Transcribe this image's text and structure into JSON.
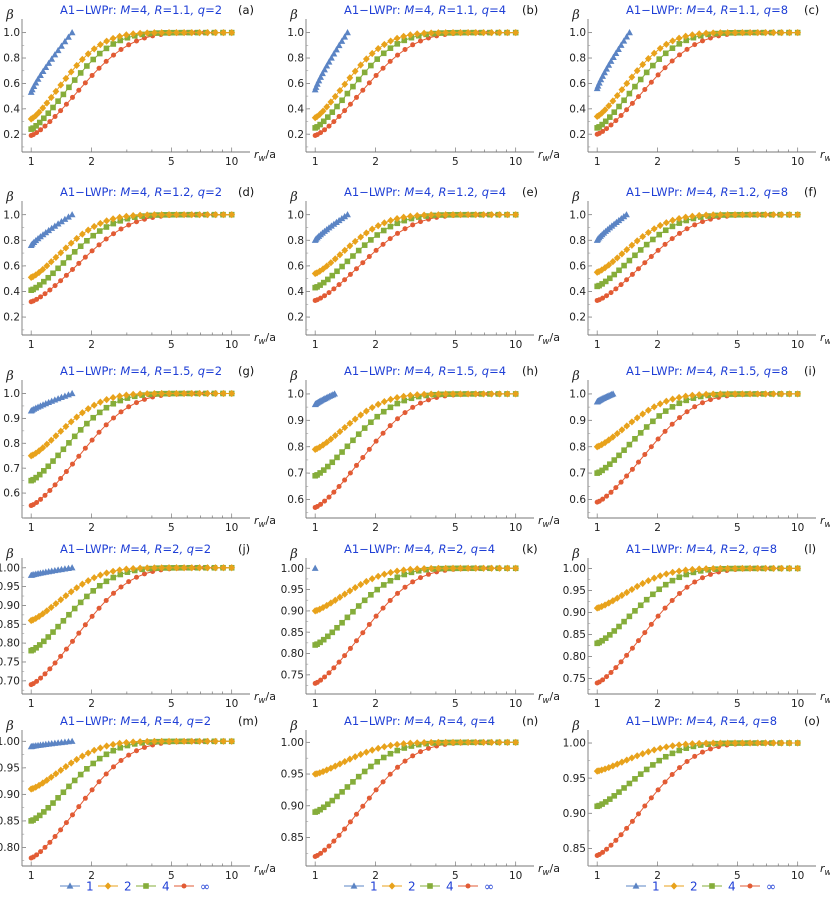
{
  "figure": {
    "x_axis_label_main": "r",
    "x_axis_label_sub": "w",
    "x_axis_label_tail": "/a",
    "y_axis_label": "β",
    "title_prefix": "A1−LWPr: ",
    "colors": {
      "1": "#5b84c4",
      "2": "#e8a21b",
      "4": "#85ad3a",
      "inf": "#e25b34",
      "title": "#1f3fd6"
    }
  },
  "legends": [
    {
      "items": [
        {
          "label": "1",
          "key": "1"
        },
        {
          "label": "2",
          "key": "2"
        },
        {
          "label": "4",
          "key": "4"
        },
        {
          "label": "∞",
          "key": "inf"
        }
      ]
    },
    {
      "items": [
        {
          "label": "1",
          "key": "1"
        },
        {
          "label": "2",
          "key": "2"
        },
        {
          "label": "4",
          "key": "4"
        },
        {
          "label": "∞",
          "key": "inf"
        }
      ]
    },
    {
      "items": [
        {
          "label": "1",
          "key": "1"
        },
        {
          "label": "2",
          "key": "2"
        },
        {
          "label": "4",
          "key": "4"
        },
        {
          "label": "∞",
          "key": "inf"
        }
      ]
    }
  ],
  "chart_data": [
    {
      "panel": "(a)",
      "title": "M=4, R=1.1, q=2",
      "type": "line",
      "xscale": "log",
      "xlim": [
        0.9,
        11
      ],
      "ylim": [
        0.06,
        1.06
      ],
      "yticks": [
        "0.2",
        "0.4",
        "0.6",
        "0.8",
        "1.0"
      ],
      "xticks": [
        "1",
        "2",
        "5",
        "10"
      ],
      "series": [
        {
          "name": "1",
          "start": [
            1.0,
            0.53
          ],
          "end": [
            1.6,
            1.0
          ]
        },
        {
          "name": "2",
          "start": [
            1.0,
            0.32
          ],
          "end": [
            10,
            1.0
          ]
        },
        {
          "name": "4",
          "start": [
            1.0,
            0.24
          ],
          "end": [
            10,
            1.0
          ]
        },
        {
          "name": "∞",
          "start": [
            1.0,
            0.19
          ],
          "end": [
            10,
            1.0
          ]
        }
      ]
    },
    {
      "panel": "(b)",
      "title": "M=4, R=1.1, q=4",
      "type": "line",
      "xscale": "log",
      "xlim": [
        0.9,
        11
      ],
      "ylim": [
        0.06,
        1.06
      ],
      "yticks": [
        "0.2",
        "0.4",
        "0.6",
        "0.8",
        "1.0"
      ],
      "xticks": [
        "1",
        "2",
        "5",
        "10"
      ],
      "series": [
        {
          "name": "1",
          "start": [
            1.0,
            0.55
          ],
          "end": [
            1.45,
            1.0
          ]
        },
        {
          "name": "2",
          "start": [
            1.0,
            0.33
          ],
          "end": [
            10,
            1.0
          ]
        },
        {
          "name": "4",
          "start": [
            1.0,
            0.25
          ],
          "end": [
            10,
            1.0
          ]
        },
        {
          "name": "∞",
          "start": [
            1.0,
            0.19
          ],
          "end": [
            10,
            1.0
          ]
        }
      ]
    },
    {
      "panel": "(c)",
      "title": "M=4, R=1.1, q=8",
      "type": "line",
      "xscale": "log",
      "xlim": [
        0.9,
        11
      ],
      "ylim": [
        0.06,
        1.06
      ],
      "yticks": [
        "0.2",
        "0.4",
        "0.6",
        "0.8",
        "1.0"
      ],
      "xticks": [
        "1",
        "2",
        "5",
        "10"
      ],
      "series": [
        {
          "name": "1",
          "start": [
            1.0,
            0.56
          ],
          "end": [
            1.45,
            1.0
          ]
        },
        {
          "name": "2",
          "start": [
            1.0,
            0.34
          ],
          "end": [
            10,
            1.0
          ]
        },
        {
          "name": "4",
          "start": [
            1.0,
            0.25
          ],
          "end": [
            10,
            1.0
          ]
        },
        {
          "name": "∞",
          "start": [
            1.0,
            0.2
          ],
          "end": [
            10,
            1.0
          ]
        }
      ]
    },
    {
      "panel": "(d)",
      "title": "M=4, R=1.2, q=2",
      "type": "line",
      "xscale": "log",
      "xlim": [
        0.9,
        11
      ],
      "ylim": [
        0.06,
        1.06
      ],
      "yticks": [
        "0.2",
        "0.4",
        "0.6",
        "0.8",
        "1.0"
      ],
      "xticks": [
        "1",
        "2",
        "5",
        "10"
      ],
      "series": [
        {
          "name": "1",
          "start": [
            1.0,
            0.76
          ],
          "end": [
            1.6,
            1.0
          ]
        },
        {
          "name": "2",
          "start": [
            1.0,
            0.51
          ],
          "end": [
            10,
            1.0
          ]
        },
        {
          "name": "4",
          "start": [
            1.0,
            0.41
          ],
          "end": [
            10,
            1.0
          ]
        },
        {
          "name": "∞",
          "start": [
            1.0,
            0.32
          ],
          "end": [
            10,
            1.0
          ]
        }
      ]
    },
    {
      "panel": "(e)",
      "title": "M=4, R=1.2, q=4",
      "type": "line",
      "xscale": "log",
      "xlim": [
        0.9,
        11
      ],
      "ylim": [
        0.06,
        1.06
      ],
      "yticks": [
        "0.2",
        "0.4",
        "0.6",
        "0.8",
        "1.0"
      ],
      "xticks": [
        "1",
        "2",
        "5",
        "10"
      ],
      "series": [
        {
          "name": "1",
          "start": [
            1.0,
            0.8
          ],
          "end": [
            1.45,
            1.0
          ]
        },
        {
          "name": "2",
          "start": [
            1.0,
            0.54
          ],
          "end": [
            10,
            1.0
          ]
        },
        {
          "name": "4",
          "start": [
            1.0,
            0.43
          ],
          "end": [
            10,
            1.0
          ]
        },
        {
          "name": "∞",
          "start": [
            1.0,
            0.33
          ],
          "end": [
            10,
            1.0
          ]
        }
      ]
    },
    {
      "panel": "(f)",
      "title": "M=4, R=1.2, q=8",
      "type": "line",
      "xscale": "log",
      "xlim": [
        0.9,
        11
      ],
      "ylim": [
        0.06,
        1.06
      ],
      "yticks": [
        "0.2",
        "0.4",
        "0.6",
        "0.8",
        "1.0"
      ],
      "xticks": [
        "1",
        "2",
        "5",
        "10"
      ],
      "series": [
        {
          "name": "1",
          "start": [
            1.0,
            0.8
          ],
          "end": [
            1.4,
            1.0
          ]
        },
        {
          "name": "2",
          "start": [
            1.0,
            0.55
          ],
          "end": [
            10,
            1.0
          ]
        },
        {
          "name": "4",
          "start": [
            1.0,
            0.44
          ],
          "end": [
            10,
            1.0
          ]
        },
        {
          "name": "∞",
          "start": [
            1.0,
            0.33
          ],
          "end": [
            10,
            1.0
          ]
        }
      ]
    },
    {
      "panel": "(g)",
      "title": "M=4, R=1.5, q=2",
      "type": "line",
      "xscale": "log",
      "xlim": [
        0.9,
        11
      ],
      "ylim": [
        0.5,
        1.03
      ],
      "yticks": [
        "0.6",
        "0.7",
        "0.8",
        "0.9",
        "1.0"
      ],
      "xticks": [
        "1",
        "2",
        "5",
        "10"
      ],
      "series": [
        {
          "name": "1",
          "start": [
            1.0,
            0.93
          ],
          "end": [
            1.6,
            1.0
          ]
        },
        {
          "name": "2",
          "start": [
            1.0,
            0.75
          ],
          "end": [
            10,
            1.0
          ]
        },
        {
          "name": "4",
          "start": [
            1.0,
            0.65
          ],
          "end": [
            10,
            1.0
          ]
        },
        {
          "name": "∞",
          "start": [
            1.0,
            0.55
          ],
          "end": [
            10,
            1.0
          ]
        }
      ]
    },
    {
      "panel": "(h)",
      "title": "M=4, R=1.5, q=4",
      "type": "line",
      "xscale": "log",
      "xlim": [
        0.9,
        11
      ],
      "ylim": [
        0.53,
        1.03
      ],
      "yticks": [
        "0.6",
        "0.7",
        "0.8",
        "0.9",
        "1.0"
      ],
      "xticks": [
        "1",
        "2",
        "5",
        "10"
      ],
      "series": [
        {
          "name": "1",
          "start": [
            1.0,
            0.96
          ],
          "end": [
            1.25,
            1.0
          ]
        },
        {
          "name": "2",
          "start": [
            1.0,
            0.79
          ],
          "end": [
            10,
            1.0
          ]
        },
        {
          "name": "4",
          "start": [
            1.0,
            0.69
          ],
          "end": [
            10,
            1.0
          ]
        },
        {
          "name": "∞",
          "start": [
            1.0,
            0.57
          ],
          "end": [
            10,
            1.0
          ]
        }
      ]
    },
    {
      "panel": "(i)",
      "title": "M=4, R=1.5, q=8",
      "type": "line",
      "xscale": "log",
      "xlim": [
        0.9,
        11
      ],
      "ylim": [
        0.53,
        1.03
      ],
      "yticks": [
        "0.6",
        "0.7",
        "0.8",
        "0.9",
        "1.0"
      ],
      "xticks": [
        "1",
        "2",
        "5",
        "10"
      ],
      "series": [
        {
          "name": "1",
          "start": [
            1.0,
            0.97
          ],
          "end": [
            1.2,
            1.0
          ]
        },
        {
          "name": "2",
          "start": [
            1.0,
            0.8
          ],
          "end": [
            10,
            1.0
          ]
        },
        {
          "name": "4",
          "start": [
            1.0,
            0.7
          ],
          "end": [
            10,
            1.0
          ]
        },
        {
          "name": "∞",
          "start": [
            1.0,
            0.59
          ],
          "end": [
            10,
            1.0
          ]
        }
      ]
    },
    {
      "panel": "(j)",
      "title": "M=4, R=2, q=2",
      "type": "line",
      "xscale": "log",
      "xlim": [
        0.9,
        11
      ],
      "ylim": [
        0.665,
        1.01
      ],
      "yticks": [
        "0.70",
        "0.75",
        "0.80",
        "0.85",
        "0.90",
        "0.95",
        "1.00"
      ],
      "xticks": [
        "1",
        "2",
        "5",
        "10"
      ],
      "series": [
        {
          "name": "1",
          "start": [
            1.0,
            0.98
          ],
          "end": [
            1.6,
            1.0
          ]
        },
        {
          "name": "2",
          "start": [
            1.0,
            0.86
          ],
          "end": [
            10,
            1.0
          ]
        },
        {
          "name": "4",
          "start": [
            1.0,
            0.78
          ],
          "end": [
            10,
            1.0
          ]
        },
        {
          "name": "∞",
          "start": [
            1.0,
            0.69
          ],
          "end": [
            10,
            1.0
          ]
        }
      ]
    },
    {
      "panel": "(k)",
      "title": "M=4, R=2, q=4",
      "type": "line",
      "xscale": "log",
      "xlim": [
        0.9,
        11
      ],
      "ylim": [
        0.705,
        1.01
      ],
      "yticks": [
        "0.75",
        "0.80",
        "0.85",
        "0.90",
        "0.95",
        "1.00"
      ],
      "xticks": [
        "1",
        "2",
        "5",
        "10"
      ],
      "series": [
        {
          "name": "1",
          "start": [
            1.0,
            1.0
          ],
          "end": [
            1.0,
            1.0
          ]
        },
        {
          "name": "2",
          "start": [
            1.0,
            0.9
          ],
          "end": [
            10,
            1.0
          ]
        },
        {
          "name": "4",
          "start": [
            1.0,
            0.82
          ],
          "end": [
            10,
            1.0
          ]
        },
        {
          "name": "∞",
          "start": [
            1.0,
            0.73
          ],
          "end": [
            10,
            1.0
          ]
        }
      ]
    },
    {
      "panel": "(l)",
      "title": "M=4, R=2, q=8",
      "type": "line",
      "xscale": "log",
      "xlim": [
        0.9,
        11
      ],
      "ylim": [
        0.715,
        1.01
      ],
      "yticks": [
        "0.75",
        "0.80",
        "0.85",
        "0.90",
        "0.95",
        "1.00"
      ],
      "xticks": [
        "1",
        "2",
        "5",
        "10"
      ],
      "series": [
        {
          "name": "2",
          "start": [
            1.0,
            0.91
          ],
          "end": [
            10,
            1.0
          ]
        },
        {
          "name": "4",
          "start": [
            1.0,
            0.83
          ],
          "end": [
            10,
            1.0
          ]
        },
        {
          "name": "∞",
          "start": [
            1.0,
            0.74
          ],
          "end": [
            10,
            1.0
          ]
        }
      ]
    },
    {
      "panel": "(m)",
      "title": "M=4, R=4, q=2",
      "type": "line",
      "xscale": "log",
      "xlim": [
        0.9,
        11
      ],
      "ylim": [
        0.765,
        1.01
      ],
      "yticks": [
        "0.80",
        "0.85",
        "0.90",
        "0.95",
        "1.00"
      ],
      "xticks": [
        "1",
        "2",
        "5",
        "10"
      ],
      "series": [
        {
          "name": "1",
          "start": [
            1.0,
            0.99
          ],
          "end": [
            1.6,
            1.0
          ]
        },
        {
          "name": "2",
          "start": [
            1.0,
            0.91
          ],
          "end": [
            10,
            1.0
          ]
        },
        {
          "name": "4",
          "start": [
            1.0,
            0.85
          ],
          "end": [
            10,
            1.0
          ]
        },
        {
          "name": "∞",
          "start": [
            1.0,
            0.78
          ],
          "end": [
            10,
            1.0
          ]
        }
      ]
    },
    {
      "panel": "(n)",
      "title": "M=4, R=4, q=4",
      "type": "line",
      "xscale": "log",
      "xlim": [
        0.9,
        11
      ],
      "ylim": [
        0.805,
        1.01
      ],
      "yticks": [
        "0.85",
        "0.90",
        "0.95",
        "1.00"
      ],
      "xticks": [
        "1",
        "2",
        "5",
        "10"
      ],
      "series": [
        {
          "name": "2",
          "start": [
            1.0,
            0.95
          ],
          "end": [
            10,
            1.0
          ]
        },
        {
          "name": "4",
          "start": [
            1.0,
            0.89
          ],
          "end": [
            10,
            1.0
          ]
        },
        {
          "name": "∞",
          "start": [
            1.0,
            0.82
          ],
          "end": [
            10,
            1.0
          ]
        }
      ]
    },
    {
      "panel": "(o)",
      "title": "M=4, R=4, q=8",
      "type": "line",
      "xscale": "log",
      "xlim": [
        0.9,
        11
      ],
      "ylim": [
        0.825,
        1.01
      ],
      "yticks": [
        "0.85",
        "0.90",
        "0.95",
        "1.00"
      ],
      "xticks": [
        "1",
        "2",
        "5",
        "10"
      ],
      "series": [
        {
          "name": "2",
          "start": [
            1.0,
            0.96
          ],
          "end": [
            10,
            1.0
          ]
        },
        {
          "name": "4",
          "start": [
            1.0,
            0.91
          ],
          "end": [
            10,
            1.0
          ]
        },
        {
          "name": "∞",
          "start": [
            1.0,
            0.84
          ],
          "end": [
            10,
            1.0
          ]
        }
      ]
    }
  ]
}
